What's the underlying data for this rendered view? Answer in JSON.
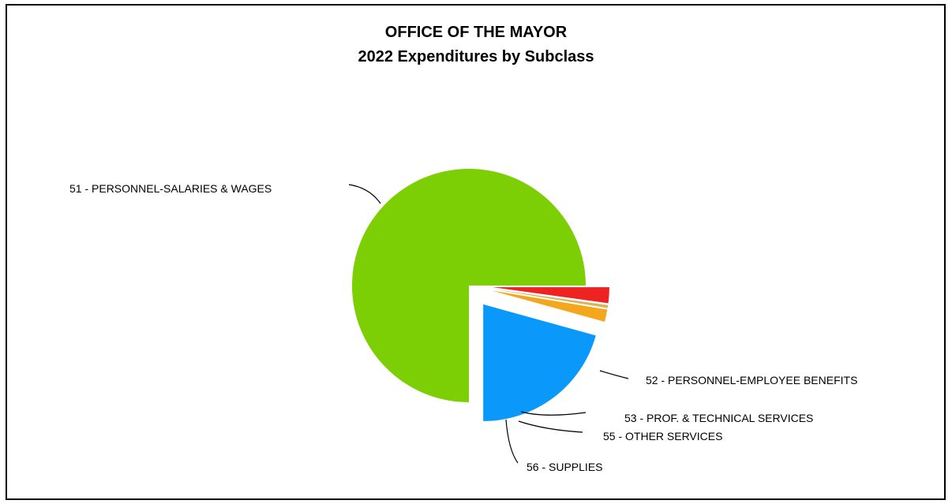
{
  "chart_data": {
    "type": "pie",
    "title": "OFFICE OF THE MAYOR",
    "subtitle": "2022 Expenditures by Subclass",
    "slices": [
      {
        "label": "51 - PERSONNEL-SALARIES & WAGES",
        "value": 75.0,
        "color": "#7ccf04",
        "exploded": false
      },
      {
        "label": "52 - PERSONNEL-EMPLOYEE BENEFITS",
        "value": 20.7,
        "color": "#0a99fb",
        "exploded": true
      },
      {
        "label": "53 - PROF. & TECHNICAL SERVICES",
        "value": 1.7,
        "color": "#f4a71c",
        "exploded": true
      },
      {
        "label": "55 - OTHER SERVICES",
        "value": 0.4,
        "color": "#d9b45a",
        "exploded": true
      },
      {
        "label": "56 - SUPPLIES",
        "value": 2.2,
        "color": "#ee2222",
        "exploded": true
      }
    ],
    "legend": "none",
    "grid": false
  }
}
